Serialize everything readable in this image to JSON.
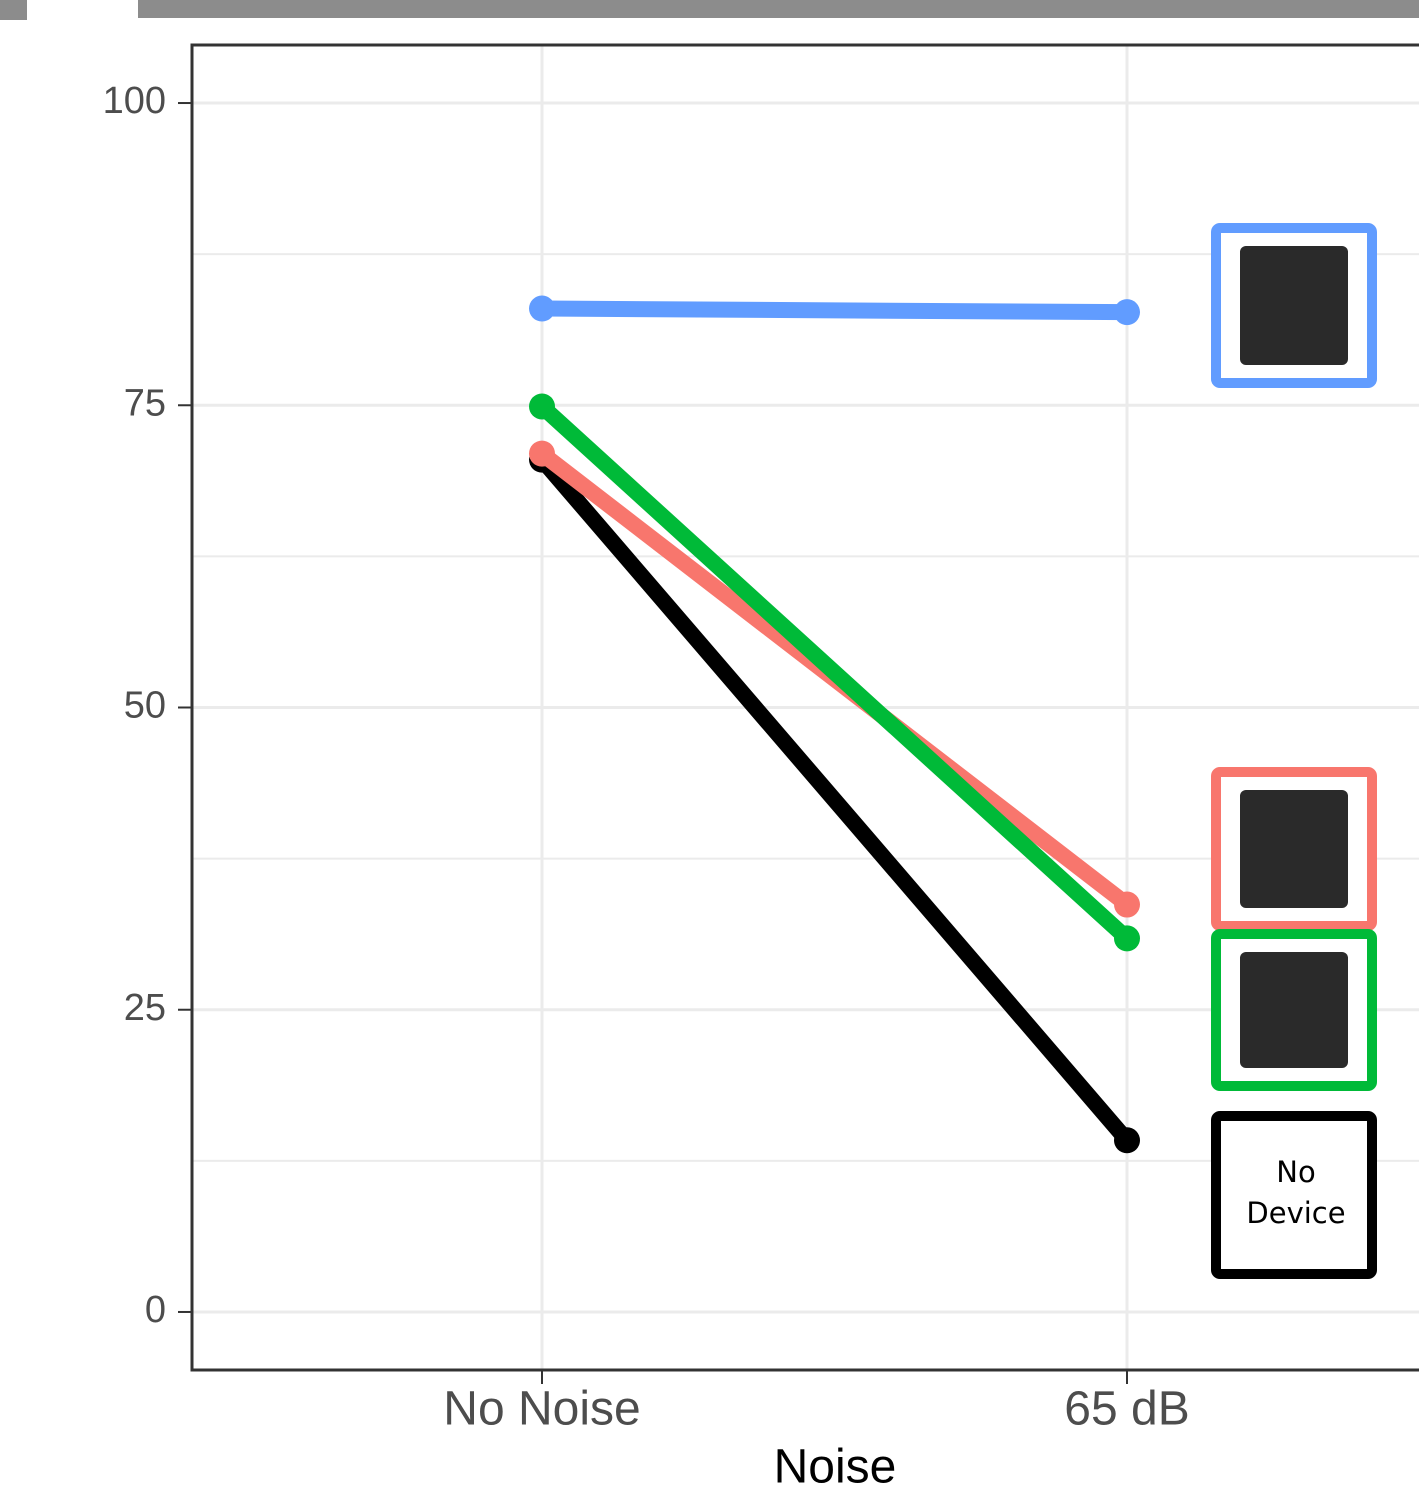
{
  "chart_data": {
    "type": "line",
    "x_label": "Noise",
    "categories": [
      "No Noise",
      "65 dB"
    ],
    "series": [
      {
        "name": "No Device",
        "color": "#000000",
        "values": [
          70.5,
          14.2
        ]
      },
      {
        "color": "#f8766d",
        "values": [
          71.0,
          33.7
        ]
      },
      {
        "color": "#00ba38",
        "values": [
          74.9,
          30.9
        ]
      },
      {
        "color": "#619cff",
        "values": [
          83.0,
          82.7
        ]
      }
    ],
    "ylim": [
      -4.8,
      104.8
    ],
    "yticks": [
      0,
      25,
      50,
      75,
      100
    ],
    "grid": true
  }
}
